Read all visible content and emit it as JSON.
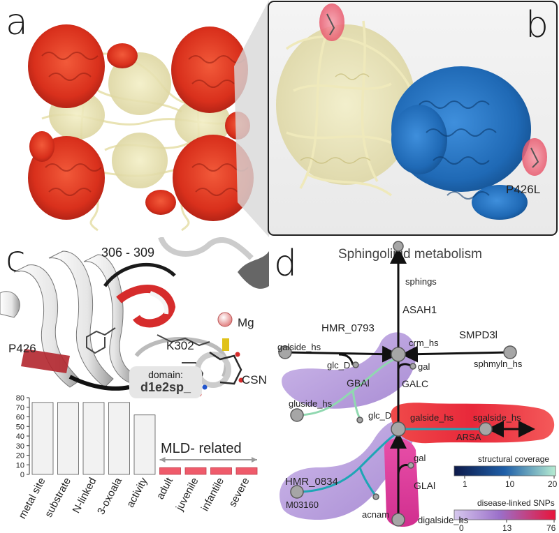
{
  "panels": {
    "a": {
      "letter": "a"
    },
    "b": {
      "letter": "b",
      "mutation_label": "P426L"
    },
    "c": {
      "letter": "c",
      "residue_range": "306 - 309",
      "labels": {
        "p426": "P426",
        "k302": "K302",
        "mg": "Mg",
        "csn": "CSN"
      },
      "domain_box": {
        "title": "domain:",
        "value": "d1e2sp_"
      },
      "mld_label": "MLD- related"
    },
    "d": {
      "letter": "d",
      "title": "Sphingolipid metabolism",
      "nodes": {
        "sphings": "sphings",
        "crm_hs": "crm_hs",
        "galside_hs": "galside_hs",
        "sphmyln_hs": "sphmyln_hs",
        "glc_D_top": "glc_D",
        "gal_top": "gal",
        "gluside_hs": "gluside_hs",
        "glc_D_mid": "glc_D",
        "galside_hs_mid": "galside_hs",
        "sgalside_hs": "sgalside_hs",
        "gal_low": "gal",
        "M03160": "M03160",
        "acnam": "acnam",
        "digalside_hs": "digalside_hs"
      },
      "reactions": {
        "ASAH1": "ASAH1",
        "HMR_0793": "HMR_0793",
        "SMPD3l": "SMPD3l",
        "GBAl": "GBAl",
        "GALC": "GALC",
        "ARSA": "ARSA",
        "HMR_0834": "HMR_0834",
        "GLAl": "GLAl"
      },
      "legend": {
        "coverage": {
          "title": "structural coverage",
          "ticks": [
            "1",
            "10",
            "20"
          ],
          "colors": [
            "#0d1a4a",
            "#1f5fa8",
            "#b7ecd2"
          ]
        },
        "snps": {
          "title": "disease-linked SNPs",
          "ticks": [
            "0",
            "13",
            "76"
          ],
          "colors": [
            "#d6c8ee",
            "#9b6fc9",
            "#e8143a"
          ]
        }
      }
    }
  },
  "chart_data": {
    "type": "bar",
    "categories": [
      "metal site",
      "substrate",
      "N-linked",
      "3-oxoala",
      "activity",
      "adult",
      "juvenile",
      "infantile",
      "severe"
    ],
    "values": [
      75,
      75,
      75,
      75,
      62,
      7,
      7,
      7,
      7
    ],
    "ylim": [
      0,
      80
    ],
    "yticks": [
      0,
      10,
      20,
      30,
      40,
      50,
      60,
      70,
      80
    ],
    "colors": {
      "normal": "#f2f2f2",
      "mld": "#ef5b6b"
    },
    "mld_categories": [
      "adult",
      "juvenile",
      "infantile",
      "severe"
    ]
  }
}
